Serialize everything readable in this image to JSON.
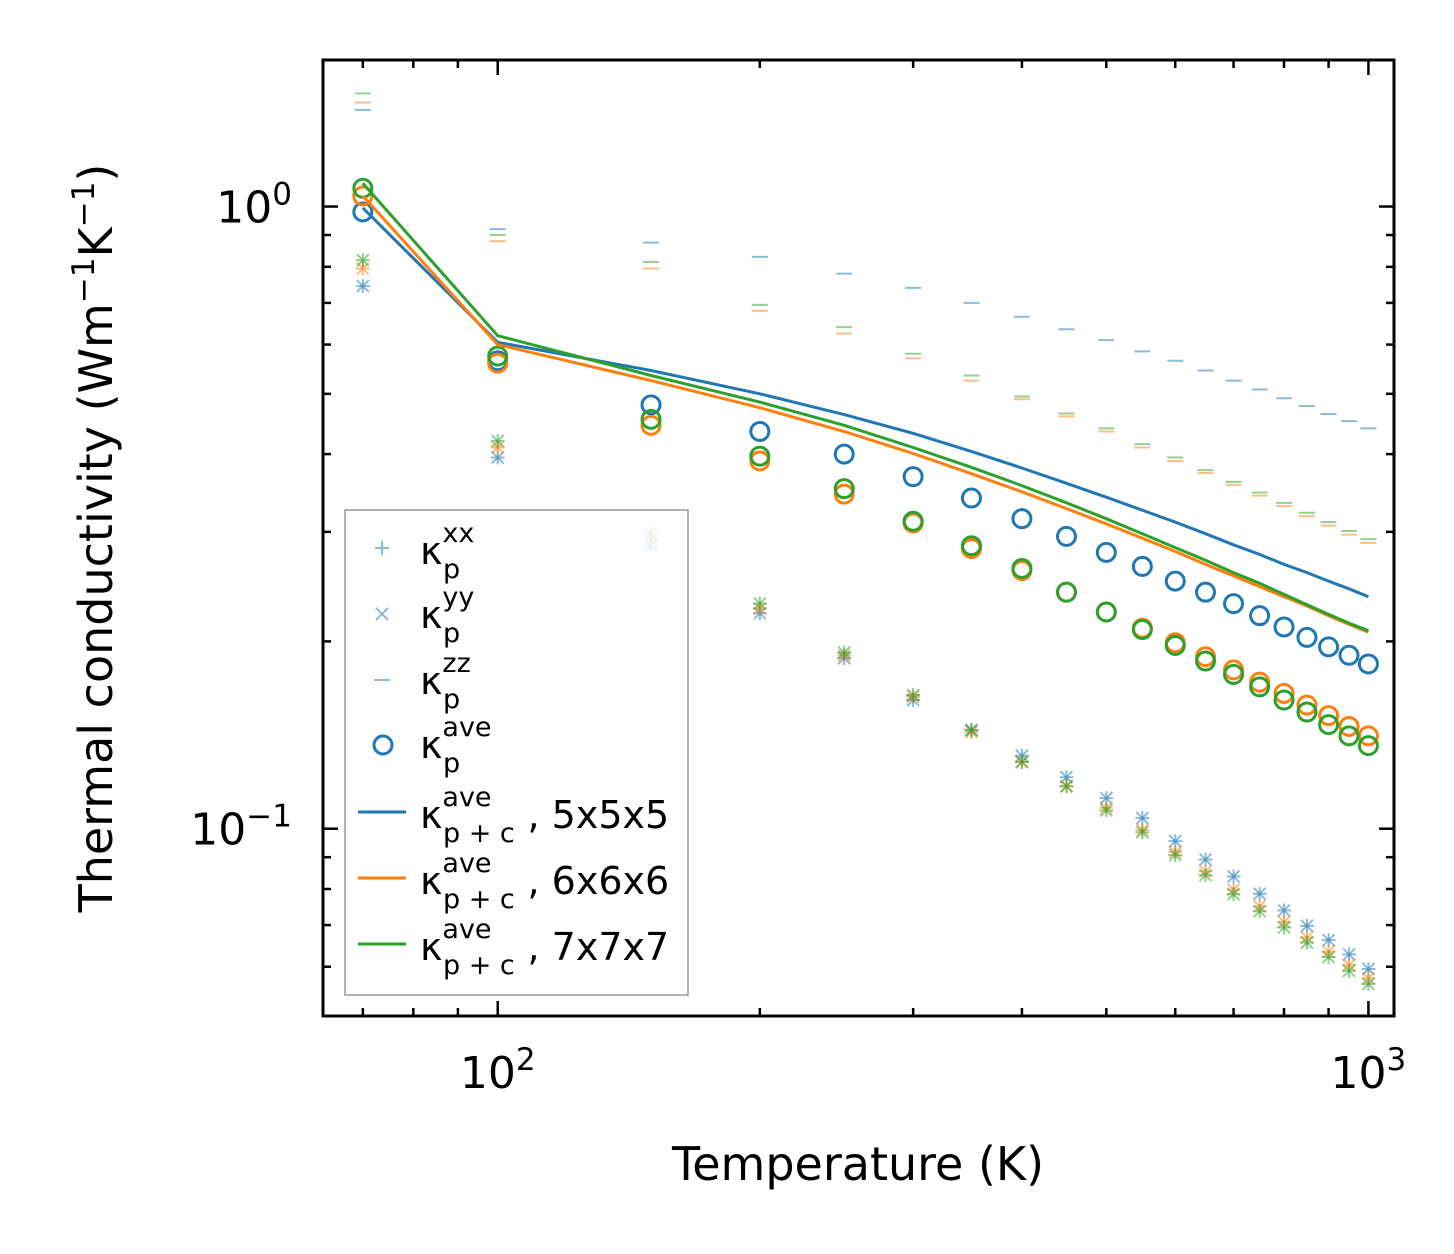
{
  "chart_data": {
    "type": "scatter",
    "xscale": "log",
    "yscale": "log",
    "xlim": [
      63,
      1070
    ],
    "ylim": [
      0.05,
      1.72
    ],
    "xlabel": "Temperature (K)",
    "ylabel": {
      "text": "Thermal conductivity (Wm",
      "exp1": "−1",
      "mid": "K",
      "exp2": "−1",
      "end": ")"
    },
    "xticks": [
      {
        "value": 100,
        "base": "10",
        "exp": "2"
      },
      {
        "value": 1000,
        "base": "10",
        "exp": "3"
      }
    ],
    "yticks": [
      {
        "value": 0.1,
        "base": "10",
        "exp": "−1"
      },
      {
        "value": 1,
        "base": "10",
        "exp": "0"
      }
    ],
    "colors": {
      "5x5x5": "#1f77b4",
      "6x6x6": "#ff7f0e",
      "7x7x7": "#2ca02c"
    },
    "x": [
      70,
      100,
      150,
      200,
      250,
      300,
      350,
      400,
      450,
      500,
      550,
      600,
      650,
      700,
      750,
      800,
      850,
      900,
      950,
      1000
    ],
    "series": [
      {
        "name": "5x5x5",
        "color": "#1f77b4",
        "kxx": [
          0.745,
          0.395,
          0.285,
          0.222,
          0.188,
          0.161,
          0.144,
          0.131,
          0.121,
          0.112,
          0.104,
          0.0955,
          0.0892,
          0.0838,
          0.0786,
          0.0739,
          0.0698,
          0.0662,
          0.0628,
          0.0595
        ],
        "kyy": [
          0.745,
          0.395,
          0.285,
          0.222,
          0.188,
          0.161,
          0.144,
          0.131,
          0.121,
          0.112,
          0.104,
          0.0955,
          0.0892,
          0.0838,
          0.0786,
          0.0739,
          0.0698,
          0.0662,
          0.0628,
          0.0595
        ],
        "kzz": [
          1.43,
          0.92,
          0.875,
          0.83,
          0.78,
          0.74,
          0.7,
          0.665,
          0.635,
          0.61,
          0.585,
          0.565,
          0.545,
          0.525,
          0.508,
          0.492,
          0.478,
          0.464,
          0.452,
          0.44
        ],
        "kave": [
          0.98,
          0.565,
          0.48,
          0.435,
          0.4,
          0.368,
          0.34,
          0.315,
          0.295,
          0.278,
          0.264,
          0.25,
          0.24,
          0.23,
          0.22,
          0.211,
          0.203,
          0.196,
          0.19,
          0.184
        ],
        "kpc": [
          0.995,
          0.605,
          0.545,
          0.5,
          0.463,
          0.432,
          0.404,
          0.38,
          0.359,
          0.341,
          0.325,
          0.311,
          0.298,
          0.286,
          0.276,
          0.266,
          0.258,
          0.25,
          0.243,
          0.236
        ]
      },
      {
        "name": "6x6x6",
        "color": "#ff7f0e",
        "kxx": [
          0.795,
          0.41,
          0.292,
          0.226,
          0.19,
          0.163,
          0.143,
          0.128,
          0.117,
          0.108,
          0.0995,
          0.0917,
          0.0854,
          0.0798,
          0.075,
          0.0708,
          0.0669,
          0.0634,
          0.0604,
          0.0575
        ],
        "kyy": [
          0.795,
          0.41,
          0.292,
          0.226,
          0.19,
          0.163,
          0.143,
          0.128,
          0.117,
          0.108,
          0.0995,
          0.0917,
          0.0854,
          0.0798,
          0.075,
          0.0708,
          0.0669,
          0.0634,
          0.0604,
          0.0575
        ],
        "kzz": [
          1.47,
          0.88,
          0.795,
          0.68,
          0.625,
          0.57,
          0.525,
          0.49,
          0.46,
          0.435,
          0.41,
          0.39,
          0.373,
          0.357,
          0.343,
          0.33,
          0.318,
          0.307,
          0.297,
          0.288
        ],
        "kave": [
          1.04,
          0.56,
          0.445,
          0.39,
          0.345,
          0.31,
          0.282,
          0.26,
          0.24,
          0.223,
          0.21,
          0.199,
          0.189,
          0.18,
          0.172,
          0.165,
          0.158,
          0.152,
          0.146,
          0.141
        ],
        "kpc": [
          1.04,
          0.6,
          0.525,
          0.475,
          0.435,
          0.401,
          0.372,
          0.348,
          0.327,
          0.309,
          0.293,
          0.279,
          0.266,
          0.255,
          0.245,
          0.236,
          0.228,
          0.22,
          0.213,
          0.207
        ]
      },
      {
        "name": "7x7x7",
        "color": "#2ca02c",
        "kxx": [
          0.82,
          0.42,
          0.298,
          0.23,
          0.192,
          0.164,
          0.144,
          0.128,
          0.117,
          0.107,
          0.0987,
          0.0907,
          0.0842,
          0.0785,
          0.0737,
          0.0694,
          0.0656,
          0.0622,
          0.0591,
          0.0563
        ],
        "kyy": [
          0.82,
          0.42,
          0.298,
          0.23,
          0.192,
          0.164,
          0.144,
          0.128,
          0.117,
          0.107,
          0.0987,
          0.0907,
          0.0842,
          0.0785,
          0.0737,
          0.0694,
          0.0656,
          0.0622,
          0.0591,
          0.0563
        ],
        "kzz": [
          1.52,
          0.9,
          0.815,
          0.695,
          0.64,
          0.58,
          0.535,
          0.495,
          0.465,
          0.44,
          0.415,
          0.395,
          0.377,
          0.361,
          0.347,
          0.334,
          0.322,
          0.311,
          0.301,
          0.292
        ],
        "kave": [
          1.07,
          0.575,
          0.455,
          0.397,
          0.352,
          0.312,
          0.285,
          0.262,
          0.24,
          0.223,
          0.209,
          0.197,
          0.186,
          0.177,
          0.169,
          0.161,
          0.154,
          0.147,
          0.141,
          0.136
        ],
        "kpc": [
          1.09,
          0.62,
          0.535,
          0.485,
          0.445,
          0.41,
          0.381,
          0.356,
          0.334,
          0.315,
          0.298,
          0.283,
          0.27,
          0.258,
          0.248,
          0.238,
          0.229,
          0.221,
          0.214,
          0.208
        ]
      }
    ],
    "legend": {
      "position": "lower-left",
      "entries": [
        {
          "marker": "plus",
          "base": "κ",
          "sub": "p",
          "sup": "xx",
          "suffix": ""
        },
        {
          "marker": "cross",
          "base": "κ",
          "sub": "p",
          "sup": "yy",
          "suffix": ""
        },
        {
          "marker": "dash",
          "base": "κ",
          "sub": "p",
          "sup": "zz",
          "suffix": ""
        },
        {
          "marker": "circle",
          "base": "κ",
          "sub": "p",
          "sup": "ave",
          "suffix": ""
        },
        {
          "marker": "line",
          "base": "κ",
          "sub": "p + c",
          "sup": "ave",
          "suffix": ", 5x5x5"
        },
        {
          "marker": "line",
          "base": "κ",
          "sub": "p + c",
          "sup": "ave",
          "suffix": ", 6x6x6"
        },
        {
          "marker": "line",
          "base": "κ",
          "sub": "p + c",
          "sup": "ave",
          "suffix": ", 7x7x7"
        }
      ]
    }
  }
}
